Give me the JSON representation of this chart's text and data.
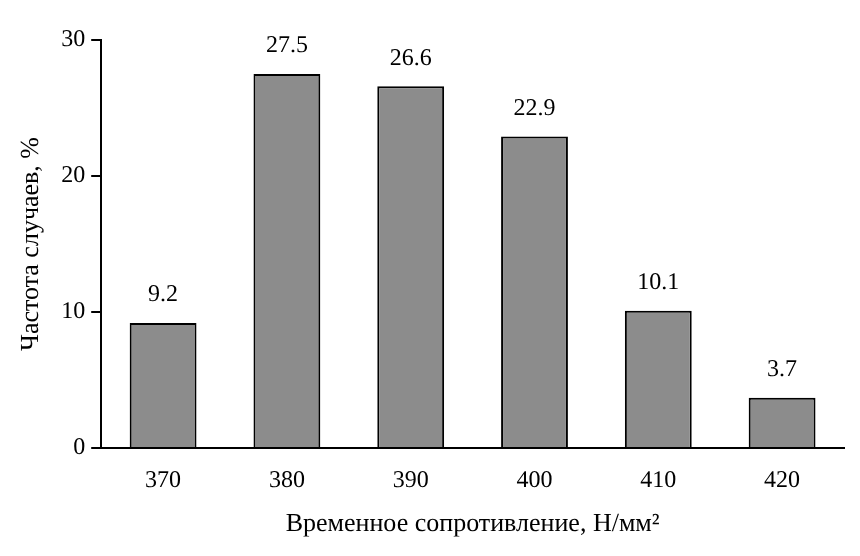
{
  "chart_data": {
    "type": "bar",
    "xlabel": "Временное сопротивление, Н/мм²",
    "ylabel": "Частота случаев, %",
    "categories": [
      "370",
      "380",
      "390",
      "400",
      "410",
      "420"
    ],
    "values": [
      9.2,
      27.5,
      26.6,
      22.9,
      10.1,
      3.7
    ],
    "color": "#8c8c8c",
    "ylim": [
      0,
      30
    ],
    "yticks": [
      0,
      10,
      20,
      30
    ],
    "grid": false,
    "legend": false,
    "data_labels": true
  }
}
